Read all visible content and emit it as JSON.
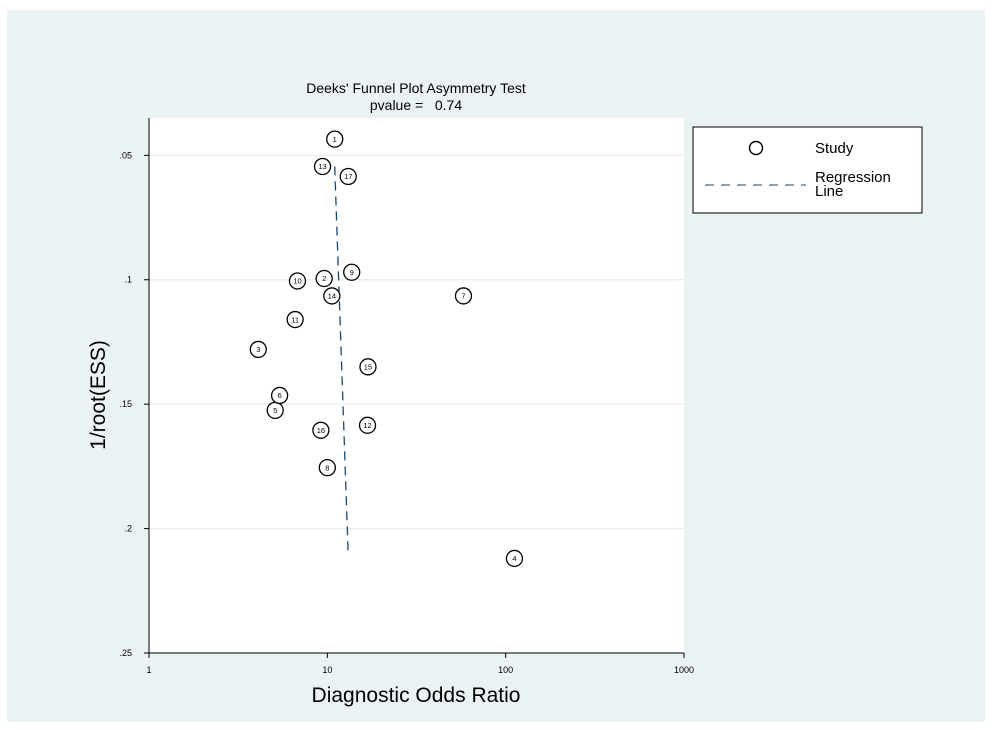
{
  "chart_data": {
    "type": "scatter",
    "title": "Deeks' Funnel Plot Asymmetry Test",
    "subtitle": "pvalue =   0.74",
    "xlabel": "Diagnostic Odds Ratio",
    "ylabel": "1/root(ESS)",
    "x_scale": "log",
    "xlim": [
      1,
      1000
    ],
    "ylim": [
      0.25,
      0.035
    ],
    "y_reversed": true,
    "x_ticks": [
      {
        "value": 1,
        "label": "1"
      },
      {
        "value": 10,
        "label": "10"
      },
      {
        "value": 100,
        "label": "100"
      },
      {
        "value": 1000,
        "label": "1000"
      }
    ],
    "y_ticks": [
      {
        "value": 0.05,
        "label": ".05"
      },
      {
        "value": 0.1,
        "label": ".1"
      },
      {
        "value": 0.15,
        "label": ".15"
      },
      {
        "value": 0.2,
        "label": ".2"
      },
      {
        "value": 0.25,
        "label": ".25"
      }
    ],
    "grid": "horizontal",
    "legend_position": "right",
    "series": [
      {
        "name": "Study",
        "marker": "circle",
        "points": [
          {
            "label": "1",
            "x": 11.0,
            "y": 0.0435
          },
          {
            "label": "2",
            "x": 9.6,
            "y": 0.0995
          },
          {
            "label": "3",
            "x": 4.1,
            "y": 0.128
          },
          {
            "label": "4",
            "x": 112,
            "y": 0.212
          },
          {
            "label": "5",
            "x": 5.1,
            "y": 0.1525
          },
          {
            "label": "6",
            "x": 5.4,
            "y": 0.1465
          },
          {
            "label": "7",
            "x": 58,
            "y": 0.1065
          },
          {
            "label": "8",
            "x": 10.0,
            "y": 0.1755
          },
          {
            "label": "9",
            "x": 13.7,
            "y": 0.097
          },
          {
            "label": "10",
            "x": 6.8,
            "y": 0.1005
          },
          {
            "label": "11",
            "x": 6.6,
            "y": 0.116
          },
          {
            "label": "12",
            "x": 16.8,
            "y": 0.1585
          },
          {
            "label": "13",
            "x": 9.4,
            "y": 0.0545
          },
          {
            "label": "14",
            "x": 10.6,
            "y": 0.1065
          },
          {
            "label": "15",
            "x": 16.9,
            "y": 0.135
          },
          {
            "label": "16",
            "x": 9.2,
            "y": 0.1605
          },
          {
            "label": "17",
            "x": 13.1,
            "y": 0.0585
          }
        ]
      },
      {
        "name": "Regression Line",
        "style": "dashed",
        "points": [
          {
            "x": 11.0,
            "y": 0.0545
          },
          {
            "x": 13.1,
            "y": 0.211
          }
        ]
      }
    ],
    "legend": [
      {
        "label": "Study",
        "symbol": "circle"
      },
      {
        "label": "Regression\nLine",
        "symbol": "dashed-line"
      }
    ]
  },
  "colors": {
    "outer_background": "#eaf2f3",
    "plot_background": "#ffffff",
    "gridline": "#e6ecee",
    "line": "#1a476f",
    "marker": "#000000",
    "text": "#000000"
  }
}
